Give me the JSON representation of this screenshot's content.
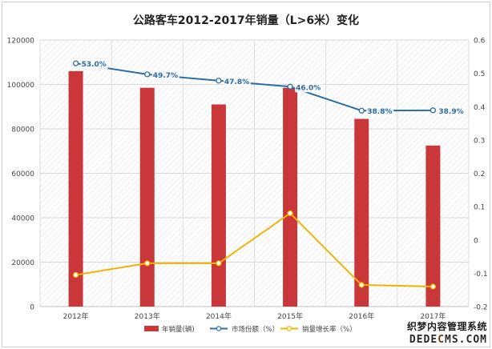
{
  "chart_data": {
    "type": "bar",
    "title": "公路客车2012-2017年销量（L>6米）变化",
    "categories": [
      "2012年",
      "2013年",
      "2014年",
      "2015年",
      "2016年",
      "2017年"
    ],
    "series": [
      {
        "name": "年销量(辆)",
        "type": "bar",
        "axis": "left",
        "values": [
          106000,
          98500,
          91000,
          98500,
          84500,
          72500
        ],
        "color": "#c9373a"
      },
      {
        "name": "市场份额（%）",
        "type": "line",
        "axis": "right",
        "values": [
          0.53,
          0.497,
          0.478,
          0.46,
          0.388,
          0.389
        ],
        "color": "#2e6ea6",
        "labels": [
          "53.0%",
          "49.7%",
          "47.8%",
          "46.0%",
          "38.8%",
          "38.9%"
        ]
      },
      {
        "name": "销量增长率（%）",
        "type": "line",
        "axis": "right",
        "values": [
          -0.105,
          -0.07,
          -0.07,
          0.08,
          -0.135,
          -0.14
        ],
        "color": "#f0b400"
      }
    ],
    "y_left": {
      "min": 0,
      "max": 120000,
      "ticks": [
        "0",
        "20000",
        "40000",
        "60000",
        "80000",
        "100000",
        "120000"
      ]
    },
    "y_right": {
      "min": -0.2,
      "max": 0.6,
      "ticks": [
        "-0.2",
        "-0.1",
        "0",
        "0.1",
        "0.2",
        "0.3",
        "0.4",
        "0.5",
        "0.6"
      ]
    },
    "grid": true,
    "legend_position": "bottom"
  },
  "watermark": {
    "line1": "织梦内容管理系统",
    "line2_pre": "DEDE",
    "line2_mid": "C",
    "line2_post": "MS.COM"
  }
}
